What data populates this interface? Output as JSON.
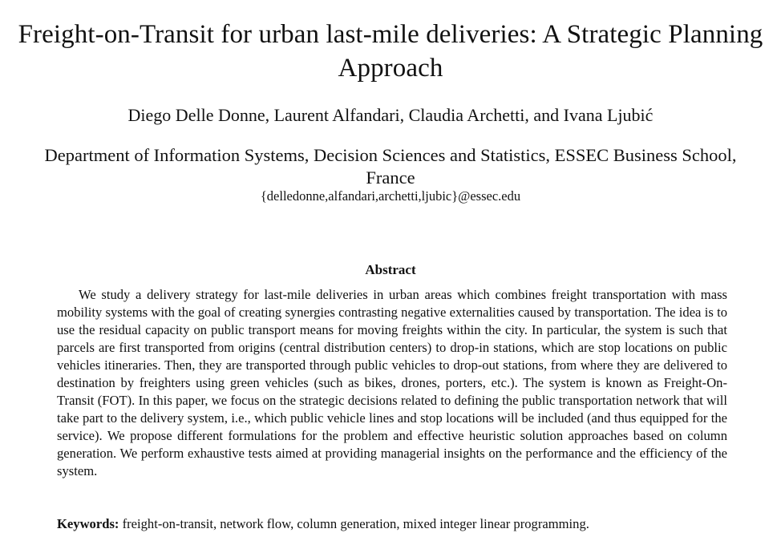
{
  "paper": {
    "title": "Freight-on-Transit for urban last-mile deliveries: A Strategic Planning Approach",
    "authors": "Diego Delle Donne, Laurent Alfandari, Claudia Archetti, and Ivana Ljubić",
    "affiliation": "Department of Information Systems, Decision Sciences and Statistics, ESSEC Business School, France",
    "email": "{delledonne,alfandari,archetti,ljubic}@essec.edu"
  },
  "abstract": {
    "heading": "Abstract",
    "body": "We study a delivery strategy for last-mile deliveries in urban areas which combines freight transporta­tion with mass mobility systems with the goal of creating synergies contrasting negative externalities caused by transportation. The idea is to use the residual capacity on public transport means for moving freights within the city. In particular, the system is such that parcels are first transported from origins (central distribution centers) to drop-in stations, which are stop locations on public vehicles itineraries. Then, they are transported through public vehicles to drop-out stations, from where they are delivered to destination by freighters using green vehicles (such as bikes, drones, porters, etc.). The system is known as Freight-On-Transit (FOT). In this paper, we focus on the strategic decisions related to defining the public transportation network that will take part to the delivery system, i.e., which public vehicle lines and stop locations will be included (and thus equipped for the service). We propose different for­mulations for the problem and effective heuristic solution approaches based on column generation. We perform exhaustive tests aimed at providing managerial insights on the performance and the efficiency of the system."
  },
  "keywords": {
    "label": "Keywords:",
    "text": "freight-on-transit, network flow, column generation, mixed integer linear programming."
  }
}
